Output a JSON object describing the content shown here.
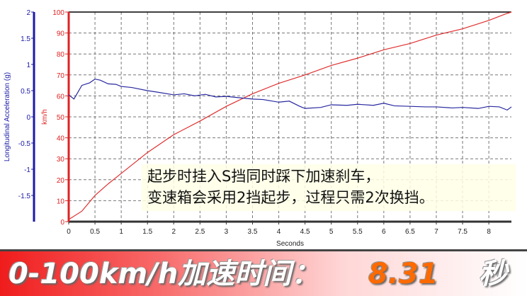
{
  "chart_data": {
    "type": "line",
    "xlabel": "Seconds",
    "xlim": [
      0,
      8.43
    ],
    "xticks": [
      "0",
      "0.5",
      "1",
      "1.5",
      "2",
      "2.5",
      "3",
      "3.5",
      "4",
      "4.5",
      "5",
      "5.5",
      "6",
      "6.5",
      "7",
      "7.5",
      "8"
    ],
    "grid": true,
    "axes": {
      "speed": {
        "label": "km/h",
        "ylim": [
          0,
          100
        ],
        "ticks": [
          "0",
          "10",
          "20",
          "30",
          "40",
          "50",
          "60",
          "70",
          "80",
          "90",
          "100"
        ],
        "color": "#e02020"
      },
      "accel": {
        "label": "Longitudinal Acceleration (g)",
        "ylim": [
          -2,
          2
        ],
        "ticks": [
          "-1.5",
          "-1",
          "-0.5",
          "0",
          "0.5",
          "1",
          "1.5",
          "2"
        ],
        "color": "#1a1aa8"
      }
    },
    "series": [
      {
        "axis": "speed",
        "color": "#e03030",
        "x": [
          0,
          0.25,
          0.5,
          0.75,
          1,
          1.5,
          2,
          2.5,
          3,
          3.5,
          4,
          4.5,
          5,
          5.5,
          6,
          6.5,
          7,
          7.5,
          8,
          8.31,
          8.43
        ],
        "y": [
          1,
          5,
          12.5,
          18,
          23,
          33,
          41.5,
          48,
          55,
          61,
          66,
          70,
          74.5,
          78,
          82,
          85,
          89,
          92,
          96,
          99,
          100
        ]
      },
      {
        "axis": "accel",
        "color": "#2828a0",
        "x": [
          0,
          0.1,
          0.25,
          0.4,
          0.5,
          0.6,
          0.75,
          0.9,
          1,
          1.2,
          1.5,
          1.7,
          2,
          2.2,
          2.4,
          2.6,
          2.8,
          3,
          3.2,
          3.5,
          3.7,
          4,
          4.2,
          4.4,
          4.5,
          4.8,
          5,
          5.3,
          5.5,
          5.8,
          6,
          6.2,
          6.5,
          6.8,
          7,
          7.3,
          7.5,
          7.8,
          8,
          8.2,
          8.35,
          8.43
        ],
        "y": [
          0.42,
          0.34,
          0.6,
          0.65,
          0.72,
          0.7,
          0.63,
          0.62,
          0.58,
          0.56,
          0.5,
          0.47,
          0.42,
          0.44,
          0.4,
          0.43,
          0.38,
          0.39,
          0.37,
          0.34,
          0.33,
          0.28,
          0.3,
          0.2,
          0.16,
          0.18,
          0.23,
          0.22,
          0.24,
          0.22,
          0.26,
          0.21,
          0.2,
          0.19,
          0.19,
          0.17,
          0.18,
          0.16,
          0.2,
          0.19,
          0.13,
          0.19
        ]
      }
    ]
  },
  "annotation": {
    "line1": "起步时挂入S挡同时踩下加速刹车，",
    "line2": "变速箱会采用2挡起步，过程只需2次换挡。"
  },
  "banner": {
    "label": "0-100km/h加速时间：",
    "value": "8.31",
    "unit": "秒"
  }
}
